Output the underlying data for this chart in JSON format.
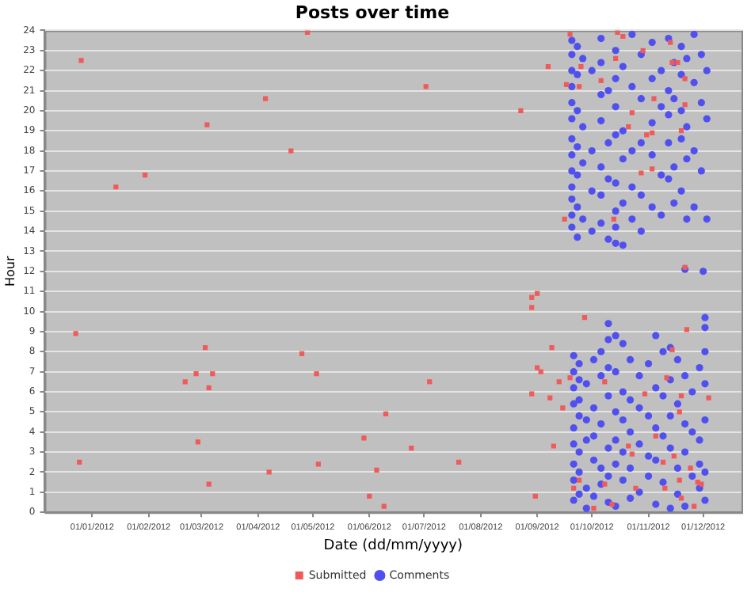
{
  "chart_data": {
    "type": "scatter",
    "title": "Posts over time",
    "xlabel": "Date (dd/mm/yyyy)",
    "ylabel": "Hour",
    "xlim": [
      "2011-12-06",
      "2012-12-22"
    ],
    "xticks": [
      {
        "value": "2012-01-01",
        "label": "01/01/2012"
      },
      {
        "value": "2012-02-01",
        "label": "01/02/2012"
      },
      {
        "value": "2012-03-01",
        "label": "01/03/2012"
      },
      {
        "value": "2012-04-01",
        "label": "01/04/2012"
      },
      {
        "value": "2012-05-01",
        "label": "01/05/2012"
      },
      {
        "value": "2012-06-01",
        "label": "01/06/2012"
      },
      {
        "value": "2012-07-01",
        "label": "01/07/2012"
      },
      {
        "value": "2012-08-01",
        "label": "01/08/2012"
      },
      {
        "value": "2012-09-01",
        "label": "01/09/2012"
      },
      {
        "value": "2012-10-01",
        "label": "01/10/2012"
      },
      {
        "value": "2012-11-01",
        "label": "01/11/2012"
      },
      {
        "value": "2012-12-01",
        "label": "01/12/2012"
      }
    ],
    "ylim": [
      0,
      24
    ],
    "yticks": [
      0,
      1,
      2,
      3,
      4,
      5,
      6,
      7,
      8,
      9,
      10,
      11,
      12,
      13,
      14,
      15,
      16,
      17,
      18,
      19,
      20,
      21,
      22,
      23,
      24
    ],
    "grid": "y",
    "legend": "bottom",
    "series": [
      {
        "name": "Submitted",
        "color": "#f05a5a",
        "marker": "square",
        "x": [
          "2011-12-26",
          "2012-01-14",
          "2012-01-30",
          "2012-03-04",
          "2012-04-05",
          "2012-04-19",
          "2012-04-28",
          "2011-12-23",
          "2011-12-25",
          "2012-02-21",
          "2012-02-27",
          "2012-03-03",
          "2012-03-07",
          "2012-03-05",
          "2012-02-28",
          "2012-03-05",
          "2012-04-07",
          "2012-04-25",
          "2012-05-03",
          "2012-05-04",
          "2012-05-29",
          "2012-06-05",
          "2012-06-01",
          "2012-06-10",
          "2012-06-09",
          "2012-06-24",
          "2012-07-04",
          "2012-07-20",
          "2012-08-29",
          "2012-08-29",
          "2012-09-01",
          "2012-09-27",
          "2012-09-09",
          "2012-09-01",
          "2012-09-03",
          "2012-08-29",
          "2012-09-08",
          "2012-09-13",
          "2012-09-15",
          "2012-09-10",
          "2012-08-31",
          "2012-09-19",
          "2012-09-21",
          "2012-09-24",
          "2012-10-02",
          "2012-10-08",
          "2012-10-30",
          "2012-10-21",
          "2012-10-23",
          "2012-10-25",
          "2012-10-12",
          "2012-11-05",
          "2012-11-15",
          "2012-11-09",
          "2012-11-11",
          "2012-11-14",
          "2012-11-22",
          "2012-11-19",
          "2012-11-18",
          "2012-12-04",
          "2012-11-10",
          "2012-11-18",
          "2012-11-19",
          "2012-11-26",
          "2012-11-28",
          "2012-11-30",
          "2012-11-24",
          "2012-10-08",
          "2012-07-02",
          "2012-08-23",
          "2012-09-07",
          "2012-09-16",
          "2012-09-17",
          "2012-09-19",
          "2012-09-24",
          "2012-09-25",
          "2012-10-06",
          "2012-10-14",
          "2012-10-15",
          "2012-10-18",
          "2012-10-13",
          "2012-10-23",
          "2012-10-21",
          "2012-10-29",
          "2012-10-28",
          "2012-11-03",
          "2012-10-31",
          "2012-11-03",
          "2012-11-04",
          "2012-11-13",
          "2012-11-14",
          "2012-11-17",
          "2012-11-21",
          "2012-11-21",
          "2012-11-19",
          "2012-11-21"
        ],
        "values": [
          22.5,
          16.2,
          16.8,
          19.3,
          20.6,
          18.0,
          23.9,
          8.9,
          2.5,
          6.5,
          6.9,
          8.2,
          6.9,
          6.2,
          3.5,
          1.4,
          2.0,
          7.9,
          6.9,
          2.4,
          3.7,
          2.1,
          0.8,
          4.9,
          0.3,
          3.2,
          6.5,
          2.5,
          10.2,
          10.7,
          10.9,
          9.7,
          8.2,
          7.2,
          7.0,
          5.9,
          5.7,
          6.5,
          5.2,
          3.3,
          0.8,
          6.7,
          1.2,
          1.6,
          0.2,
          6.5,
          5.9,
          3.3,
          2.9,
          1.2,
          0.4,
          3.8,
          2.8,
          2.5,
          6.7,
          8.1,
          9.1,
          5.8,
          5.0,
          5.7,
          1.2,
          1.6,
          0.7,
          0.3,
          1.5,
          1.4,
          2.2,
          1.4,
          21.2,
          20.0,
          22.2,
          14.6,
          21.3,
          23.8,
          21.2,
          22.2,
          21.5,
          22.6,
          23.9,
          23.7,
          14.6,
          19.9,
          19.2,
          23.0,
          16.9,
          17.1,
          18.8,
          18.9,
          20.6,
          23.4,
          22.4,
          22.4,
          21.6,
          20.3,
          19.0,
          12.2
        ]
      },
      {
        "name": "Comments",
        "color": "#5050f0",
        "marker": "circle",
        "x": [
          "2012-09-20",
          "2012-09-20",
          "2012-09-20",
          "2012-09-20",
          "2012-09-20",
          "2012-09-20",
          "2012-09-20",
          "2012-09-20",
          "2012-09-20",
          "2012-09-20",
          "2012-09-20",
          "2012-09-20",
          "2012-09-20",
          "2012-09-23",
          "2012-09-23",
          "2012-09-23",
          "2012-09-23",
          "2012-09-23",
          "2012-09-23",
          "2012-09-23",
          "2012-09-26",
          "2012-09-26",
          "2012-09-26",
          "2012-09-26",
          "2012-10-01",
          "2012-10-01",
          "2012-10-01",
          "2012-10-01",
          "2012-10-06",
          "2012-10-06",
          "2012-10-06",
          "2012-10-06",
          "2012-10-06",
          "2012-10-06",
          "2012-10-06",
          "2012-10-10",
          "2012-10-10",
          "2012-10-10",
          "2012-10-10",
          "2012-10-14",
          "2012-10-14",
          "2012-10-14",
          "2012-10-14",
          "2012-10-14",
          "2012-10-14",
          "2012-10-14",
          "2012-10-14",
          "2012-10-18",
          "2012-10-18",
          "2012-10-18",
          "2012-10-18",
          "2012-10-18",
          "2012-10-23",
          "2012-10-23",
          "2012-10-23",
          "2012-10-23",
          "2012-10-23",
          "2012-10-28",
          "2012-10-28",
          "2012-10-28",
          "2012-10-28",
          "2012-10-28",
          "2012-11-03",
          "2012-11-03",
          "2012-11-03",
          "2012-11-03",
          "2012-11-03",
          "2012-11-08",
          "2012-11-08",
          "2012-11-08",
          "2012-11-08",
          "2012-11-12",
          "2012-11-12",
          "2012-11-12",
          "2012-11-12",
          "2012-11-12",
          "2012-11-15",
          "2012-11-15",
          "2012-11-15",
          "2012-11-15",
          "2012-11-19",
          "2012-11-19",
          "2012-11-19",
          "2012-11-19",
          "2012-11-19",
          "2012-11-22",
          "2012-11-22",
          "2012-11-22",
          "2012-11-22",
          "2012-11-26",
          "2012-11-26",
          "2012-11-26",
          "2012-11-26",
          "2012-11-30",
          "2012-11-30",
          "2012-11-30",
          "2012-12-03",
          "2012-12-03",
          "2012-12-03",
          "2012-11-21",
          "2012-12-01",
          "2012-09-21",
          "2012-09-21",
          "2012-09-21",
          "2012-09-21",
          "2012-09-21",
          "2012-09-21",
          "2012-09-21",
          "2012-09-21",
          "2012-09-21",
          "2012-09-24",
          "2012-09-24",
          "2012-09-24",
          "2012-09-24",
          "2012-09-24",
          "2012-09-24",
          "2012-09-24",
          "2012-09-28",
          "2012-09-28",
          "2012-09-28",
          "2012-09-28",
          "2012-09-28",
          "2012-10-02",
          "2012-10-02",
          "2012-10-02",
          "2012-10-02",
          "2012-10-02",
          "2012-10-06",
          "2012-10-06",
          "2012-10-06",
          "2012-10-06",
          "2012-10-06",
          "2012-10-10",
          "2012-10-10",
          "2012-10-10",
          "2012-10-10",
          "2012-10-10",
          "2012-10-10",
          "2012-10-10",
          "2012-10-14",
          "2012-10-14",
          "2012-10-14",
          "2012-10-14",
          "2012-10-14",
          "2012-10-14",
          "2012-10-18",
          "2012-10-18",
          "2012-10-18",
          "2012-10-18",
          "2012-10-18",
          "2012-10-22",
          "2012-10-22",
          "2012-10-22",
          "2012-10-22",
          "2012-10-22",
          "2012-10-27",
          "2012-10-27",
          "2012-10-27",
          "2012-10-27",
          "2012-11-01",
          "2012-11-01",
          "2012-11-01",
          "2012-11-01",
          "2012-11-05",
          "2012-11-05",
          "2012-11-05",
          "2012-11-05",
          "2012-11-05",
          "2012-11-09",
          "2012-11-09",
          "2012-11-09",
          "2012-11-09",
          "2012-11-13",
          "2012-11-13",
          "2012-11-13",
          "2012-11-13",
          "2012-11-13",
          "2012-11-17",
          "2012-11-17",
          "2012-11-17",
          "2012-11-17",
          "2012-11-21",
          "2012-11-21",
          "2012-11-21",
          "2012-11-21",
          "2012-11-25",
          "2012-11-25",
          "2012-11-25",
          "2012-11-29",
          "2012-11-29",
          "2012-11-29",
          "2012-11-29",
          "2012-12-02",
          "2012-12-02",
          "2012-12-02",
          "2012-12-02",
          "2012-12-02",
          "2012-12-02",
          "2012-12-02"
        ],
        "values": [
          23.5,
          22.8,
          22.0,
          21.2,
          20.4,
          19.6,
          18.6,
          17.8,
          17.0,
          16.2,
          15.6,
          14.8,
          14.2,
          23.2,
          21.8,
          20.0,
          18.2,
          16.8,
          15.2,
          13.7,
          22.6,
          19.2,
          17.4,
          14.6,
          22.0,
          18.0,
          16.0,
          14.0,
          23.6,
          22.4,
          20.8,
          19.5,
          17.2,
          15.8,
          14.4,
          21.0,
          18.4,
          16.6,
          13.6,
          23.0,
          21.6,
          20.2,
          18.8,
          16.4,
          15.0,
          14.2,
          13.4,
          22.2,
          19.0,
          17.6,
          15.4,
          13.3,
          23.8,
          21.2,
          18.0,
          16.2,
          14.6,
          22.8,
          20.6,
          18.4,
          15.8,
          14.0,
          23.4,
          21.6,
          19.4,
          17.8,
          15.2,
          22.0,
          20.2,
          16.8,
          14.8,
          23.6,
          21.0,
          19.8,
          18.4,
          16.6,
          22.4,
          20.6,
          17.2,
          15.4,
          23.2,
          21.8,
          20.0,
          18.6,
          16.0,
          22.6,
          19.2,
          17.6,
          14.6,
          23.8,
          21.4,
          18.0,
          15.2,
          22.8,
          20.4,
          17.0,
          22.0,
          19.6,
          14.6,
          12.1,
          12.0,
          7.8,
          7.0,
          6.2,
          5.4,
          4.2,
          3.4,
          2.4,
          1.6,
          0.6,
          7.4,
          6.6,
          5.6,
          4.8,
          3.0,
          2.0,
          0.9,
          6.4,
          4.6,
          3.6,
          1.2,
          0.2,
          7.6,
          5.2,
          3.8,
          2.6,
          0.8,
          8.0,
          6.8,
          4.4,
          2.2,
          1.4,
          9.4,
          8.6,
          7.2,
          5.8,
          3.2,
          1.8,
          0.5,
          8.8,
          7.0,
          5.0,
          3.6,
          2.4,
          0.3,
          8.4,
          6.0,
          4.6,
          3.0,
          1.6,
          7.6,
          5.6,
          4.0,
          2.2,
          0.7,
          6.8,
          5.2,
          3.4,
          1.0,
          7.4,
          4.8,
          2.8,
          1.8,
          8.8,
          6.2,
          4.2,
          2.6,
          0.4,
          8.0,
          5.8,
          3.8,
          1.5,
          8.2,
          6.6,
          4.8,
          3.2,
          0.2,
          7.6,
          5.4,
          2.2,
          0.9,
          6.8,
          4.4,
          3.0,
          0.3,
          6.0,
          4.0,
          1.8,
          7.2,
          3.6,
          2.4,
          1.2,
          9.7,
          9.2,
          8.0,
          6.4,
          4.6,
          2.0,
          0.6
        ]
      }
    ]
  }
}
